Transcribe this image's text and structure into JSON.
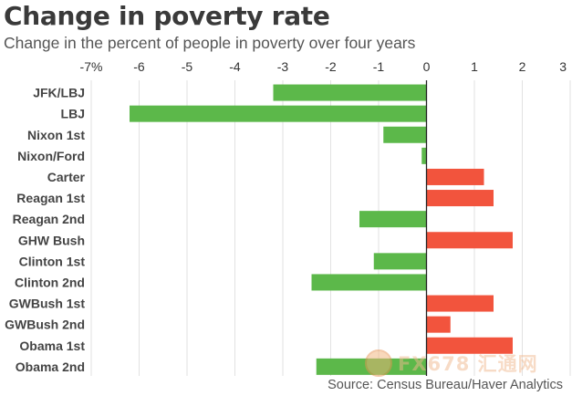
{
  "chart_data": {
    "type": "bar",
    "orientation": "horizontal",
    "title": "Change in poverty rate",
    "subtitle": "Change in the percent of people in poverty over four years",
    "source": "Source: Census Bureau/Haver Analytics",
    "xlim": [
      -7,
      3
    ],
    "ticks": [
      -7,
      -6,
      -5,
      -4,
      -3,
      -2,
      -1,
      0,
      1,
      2,
      3
    ],
    "tick_labels": [
      "-7%",
      "-6",
      "-5",
      "-4",
      "-3",
      "-2",
      "-1",
      "0",
      "1",
      "2",
      "3"
    ],
    "grid": true,
    "categories": [
      "JFK/LBJ",
      "LBJ",
      "Nixon 1st",
      "Nixon/Ford",
      "Carter",
      "Reagan 1st",
      "Reagan 2nd",
      "GHW Bush",
      "Clinton 1st",
      "Clinton 2nd",
      "GWBush 1st",
      "GWBush 2nd",
      "Obama 1st",
      "Obama 2nd"
    ],
    "values": [
      -3.2,
      -6.2,
      -0.9,
      -0.1,
      1.2,
      1.4,
      -1.4,
      1.8,
      -1.1,
      -2.4,
      1.4,
      0.5,
      1.8,
      -2.3
    ],
    "colors": {
      "negative": "#5cb84a",
      "positive": "#f2543d"
    }
  },
  "watermark": {
    "text": "FX678 汇通网",
    "icon": "watermark-logo-icon"
  }
}
